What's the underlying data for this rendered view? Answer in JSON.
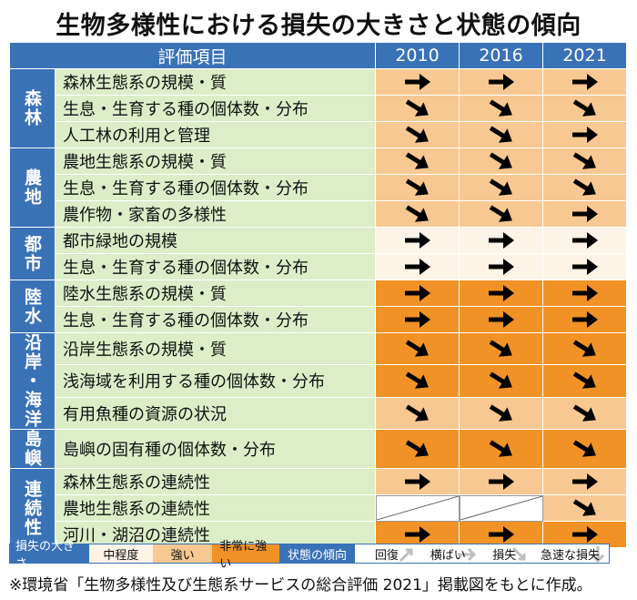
{
  "title": "生物多様性における損失の大きさと状態の傾向",
  "header": {
    "item_label": "評価項目",
    "years": [
      "2010",
      "2016",
      "2021"
    ]
  },
  "colors": {
    "header_blue": "#3a72b8",
    "item_green": "#dcedc8",
    "loss_medium": "#fdf3e6",
    "loss_strong": "#f7c891",
    "loss_very_strong": "#f19226"
  },
  "categories": [
    {
      "label": "森林",
      "rows": [
        {
          "item": "森林生態系の規模・質",
          "level": "strong",
          "trends": [
            "横ばい",
            "横ばい",
            "横ばい"
          ]
        },
        {
          "item": "生息・生育する種の個体数・分布",
          "level": "strong",
          "trends": [
            "損失",
            "損失",
            "損失"
          ]
        },
        {
          "item": "人工林の利用と管理",
          "level": "strong",
          "trends": [
            "損失",
            "損失",
            "横ばい"
          ]
        }
      ]
    },
    {
      "label": "農地",
      "rows": [
        {
          "item": "農地生態系の規模・質",
          "level": "strong",
          "trends": [
            "損失",
            "損失",
            "損失"
          ]
        },
        {
          "item": "生息・生育する種の個体数・分布",
          "level": "strong",
          "trends": [
            "損失",
            "損失",
            "損失"
          ]
        },
        {
          "item": "農作物・家畜の多様性",
          "level": "strong",
          "trends": [
            "損失",
            "損失",
            "横ばい"
          ]
        }
      ]
    },
    {
      "label": "都市",
      "rows": [
        {
          "item": "都市緑地の規模",
          "level": "medium",
          "trends": [
            "横ばい",
            "横ばい",
            "横ばい"
          ]
        },
        {
          "item": "生息・生育する種の個体数・分布",
          "level": "medium",
          "trends": [
            "横ばい",
            "横ばい",
            "横ばい"
          ]
        }
      ]
    },
    {
      "label": "陸水",
      "rows": [
        {
          "item": "陸水生態系の規模・質",
          "level": "very_strong",
          "trends": [
            "横ばい",
            "横ばい",
            "横ばい"
          ]
        },
        {
          "item": "生息・生育する種の個体数・分布",
          "level": "very_strong",
          "trends": [
            "横ばい",
            "横ばい",
            "横ばい"
          ]
        }
      ]
    },
    {
      "label": "沿岸・海洋",
      "rows": [
        {
          "item": "沿岸生態系の規模・質",
          "level": "very_strong",
          "trends": [
            "損失",
            "損失",
            "損失"
          ]
        },
        {
          "item": "浅海域を利用する種の個体数・分布",
          "level": "very_strong",
          "trends": [
            "損失",
            "損失",
            "損失"
          ]
        },
        {
          "item": "有用魚種の資源の状況",
          "level": "strong",
          "trends": [
            "損失",
            "損失",
            "損失"
          ]
        }
      ]
    },
    {
      "label": "島嶼",
      "rows": [
        {
          "item": "島嶼の固有種の個体数・分布",
          "level": "very_strong",
          "trends": [
            "損失",
            "損失",
            "損失"
          ]
        }
      ]
    },
    {
      "label": "連続性",
      "rows": [
        {
          "item": "森林生態系の連続性",
          "level": "strong",
          "trends": [
            "横ばい",
            "横ばい",
            "横ばい"
          ]
        },
        {
          "item": "農地生態系の連続性",
          "level": "strong",
          "trends": [
            null,
            null,
            "損失"
          ]
        },
        {
          "item": "河川・湖沼の連続性",
          "level": "very_strong",
          "trends": [
            "横ばい",
            "横ばい",
            "横ばい"
          ]
        }
      ]
    }
  ],
  "legend": {
    "loss_header": "損失の大きさ",
    "loss_levels": [
      "中程度",
      "強い",
      "非常に強い"
    ],
    "trend_header": "状態の傾向",
    "trend_levels": [
      "回復",
      "横ばい",
      "損失",
      "急速な損失"
    ]
  },
  "footnote": "※環境省「生物多様性及び生態系サービスの総合評価 2021」掲載図をもとに作成。"
}
